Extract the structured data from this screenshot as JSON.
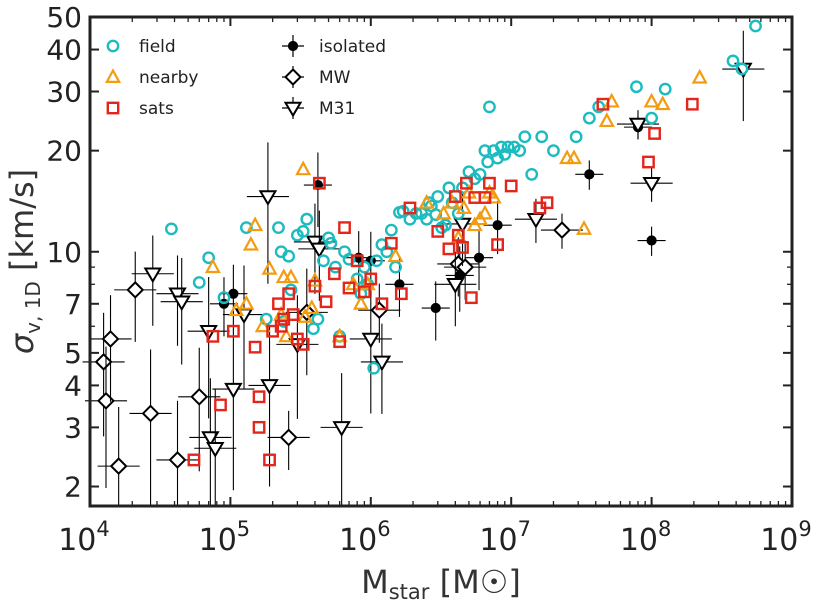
{
  "chart_data": {
    "type": "scatter",
    "x_scale": "log",
    "y_scale": "log",
    "xlim": [
      10000,
      1000000000
    ],
    "ylim": [
      1.75,
      50
    ],
    "xlabel": {
      "main": "M",
      "sub": "star",
      "unit_open": " [M",
      "unit_close": "]"
    },
    "ylabel": {
      "main": "σ",
      "sub": "v, 1D",
      "unit": " [km/s]"
    },
    "x_ticks": [
      {
        "value": 10000,
        "base": "10",
        "exp": "4"
      },
      {
        "value": 100000,
        "base": "10",
        "exp": "5"
      },
      {
        "value": 1000000,
        "base": "10",
        "exp": "6"
      },
      {
        "value": 10000000,
        "base": "10",
        "exp": "7"
      },
      {
        "value": 100000000,
        "base": "10",
        "exp": "8"
      },
      {
        "value": 1000000000,
        "base": "10",
        "exp": "9"
      }
    ],
    "y_ticks": [
      {
        "value": 2,
        "label": "2"
      },
      {
        "value": 3,
        "label": "3"
      },
      {
        "value": 4,
        "label": "4"
      },
      {
        "value": 5,
        "label": "5"
      },
      {
        "value": 7,
        "label": "7"
      },
      {
        "value": 10,
        "label": "10"
      },
      {
        "value": 20,
        "label": "20"
      },
      {
        "value": 30,
        "label": "30"
      },
      {
        "value": 40,
        "label": "40"
      },
      {
        "value": 50,
        "label": "50"
      }
    ],
    "legend": [
      {
        "label": "field",
        "series": "field"
      },
      {
        "label": "nearby",
        "series": "nearby"
      },
      {
        "label": "sats",
        "series": "sats"
      },
      {
        "label": "isolated",
        "series": "isolated"
      },
      {
        "label": "MW",
        "series": "MW"
      },
      {
        "label": "M31",
        "series": "M31"
      }
    ],
    "series": [
      {
        "name": "field",
        "marker": "circle",
        "color": "#1bbcbf",
        "points": [
          [
            38000,
            11.7
          ],
          [
            70000,
            9.6
          ],
          [
            60000,
            8.1
          ],
          [
            90000,
            7.3
          ],
          [
            130000,
            11.8
          ],
          [
            180000,
            6.3
          ],
          [
            220000,
            11.8
          ],
          [
            230000,
            10.0
          ],
          [
            240000,
            6.2
          ],
          [
            260000,
            9.7
          ],
          [
            270000,
            7.7
          ],
          [
            300000,
            11.2
          ],
          [
            330000,
            11.5
          ],
          [
            350000,
            12.5
          ],
          [
            390000,
            5.9
          ],
          [
            420000,
            6.3
          ],
          [
            460000,
            9.4
          ],
          [
            500000,
            11.0
          ],
          [
            520000,
            10.6
          ],
          [
            560000,
            9.0
          ],
          [
            600000,
            5.6
          ],
          [
            650000,
            10.0
          ],
          [
            700000,
            9.5
          ],
          [
            800000,
            8.3
          ],
          [
            850000,
            7.5
          ],
          [
            900000,
            9.0
          ],
          [
            950000,
            8.0
          ],
          [
            1050000,
            4.5
          ],
          [
            1100000,
            9.4
          ],
          [
            1200000,
            10.5
          ],
          [
            1300000,
            10.0
          ],
          [
            1400000,
            11.6
          ],
          [
            1500000,
            9.0
          ],
          [
            1600000,
            13.1
          ],
          [
            1700000,
            13.2
          ],
          [
            1900000,
            12.5
          ],
          [
            2100000,
            13.0
          ],
          [
            2300000,
            13.0
          ],
          [
            2500000,
            12.5
          ],
          [
            2600000,
            14.0
          ],
          [
            2700000,
            13.7
          ],
          [
            2900000,
            12.9
          ],
          [
            3000000,
            14.6
          ],
          [
            3200000,
            11.8
          ],
          [
            3400000,
            12.0
          ],
          [
            3600000,
            15.5
          ],
          [
            3800000,
            14.0
          ],
          [
            4200000,
            13.0
          ],
          [
            4500000,
            15.5
          ],
          [
            5000000,
            17.3
          ],
          [
            5500000,
            16.5
          ],
          [
            6000000,
            17.0
          ],
          [
            6500000,
            20.0
          ],
          [
            6800000,
            18.5
          ],
          [
            7000000,
            27.0
          ],
          [
            7500000,
            20.0
          ],
          [
            8000000,
            19.0
          ],
          [
            8500000,
            20.5
          ],
          [
            9000000,
            19.5
          ],
          [
            9500000,
            20.5
          ],
          [
            10500000,
            20.5
          ],
          [
            11500000,
            20.0
          ],
          [
            12500000,
            22.0
          ],
          [
            14000000,
            17.0
          ],
          [
            16500000,
            22.0
          ],
          [
            20000000,
            20.0
          ],
          [
            29000000,
            22.0
          ],
          [
            36000000,
            25.0
          ],
          [
            42000000,
            27.0
          ],
          [
            78000000,
            31.0
          ],
          [
            100000000,
            25.0
          ],
          [
            125000000,
            30.5
          ],
          [
            380000000,
            37.0
          ],
          [
            440000000,
            35.0
          ],
          [
            550000000,
            47.0
          ]
        ]
      },
      {
        "name": "nearby",
        "marker": "triangle-up",
        "color": "#f39c12",
        "points": [
          [
            75000,
            9.0
          ],
          [
            110000,
            6.7
          ],
          [
            130000,
            7.0
          ],
          [
            140000,
            10.5
          ],
          [
            150000,
            12.0
          ],
          [
            170000,
            6.0
          ],
          [
            190000,
            8.9
          ],
          [
            230000,
            6.5
          ],
          [
            240000,
            8.4
          ],
          [
            250000,
            5.6
          ],
          [
            270000,
            8.4
          ],
          [
            330000,
            17.6
          ],
          [
            340000,
            6.4
          ],
          [
            380000,
            6.8
          ],
          [
            400000,
            8.2
          ],
          [
            600000,
            5.6
          ],
          [
            750000,
            8.0
          ],
          [
            850000,
            7.0
          ],
          [
            950000,
            8.0
          ],
          [
            1500000,
            9.7
          ],
          [
            2500000,
            14.0
          ],
          [
            3300000,
            13.0
          ],
          [
            3800000,
            14.0
          ],
          [
            4200000,
            11.0
          ],
          [
            4600000,
            13.5
          ],
          [
            5000000,
            15.0
          ],
          [
            5500000,
            12.0
          ],
          [
            6000000,
            12.5
          ],
          [
            6500000,
            13.0
          ],
          [
            7000000,
            15.0
          ],
          [
            7500000,
            14.5
          ],
          [
            25000000,
            19.0
          ],
          [
            28000000,
            19.0
          ],
          [
            33000000,
            11.7
          ],
          [
            48000000,
            24.5
          ],
          [
            52000000,
            28.0
          ],
          [
            100000000,
            28.0
          ],
          [
            120000000,
            27.5
          ],
          [
            220000000,
            33.0
          ]
        ]
      },
      {
        "name": "sats",
        "marker": "square",
        "color": "#e3261c",
        "points": [
          [
            55000,
            2.4
          ],
          [
            75000,
            5.6
          ],
          [
            85000,
            3.5
          ],
          [
            105000,
            5.8
          ],
          [
            150000,
            5.2
          ],
          [
            160000,
            3.7
          ],
          [
            160000,
            3.0
          ],
          [
            190000,
            2.4
          ],
          [
            200000,
            5.8
          ],
          [
            220000,
            7.0
          ],
          [
            230000,
            6.0
          ],
          [
            240000,
            6.3
          ],
          [
            260000,
            7.5
          ],
          [
            280000,
            6.5
          ],
          [
            300000,
            5.5
          ],
          [
            330000,
            5.3
          ],
          [
            400000,
            7.9
          ],
          [
            430000,
            16.0
          ],
          [
            480000,
            7.1
          ],
          [
            550000,
            8.6
          ],
          [
            600000,
            5.4
          ],
          [
            650000,
            11.8
          ],
          [
            700000,
            7.8
          ],
          [
            800000,
            9.4
          ],
          [
            900000,
            7.6
          ],
          [
            1000000,
            8.3
          ],
          [
            1200000,
            7.0
          ],
          [
            1400000,
            10.6
          ],
          [
            1650000,
            7.5
          ],
          [
            1900000,
            13.5
          ],
          [
            3000000,
            11.5
          ],
          [
            3600000,
            10.2
          ],
          [
            4000000,
            14.6
          ],
          [
            4200000,
            11.2
          ],
          [
            4500000,
            10.3
          ],
          [
            4800000,
            16.0
          ],
          [
            5200000,
            7.3
          ],
          [
            5500000,
            14.5
          ],
          [
            6500000,
            14.5
          ],
          [
            7000000,
            16.0
          ],
          [
            8000000,
            10.5
          ],
          [
            10000000,
            15.7
          ],
          [
            16000000,
            13.5
          ],
          [
            18000000,
            14.0
          ],
          [
            45000000,
            27.5
          ],
          [
            95000000,
            18.5
          ],
          [
            105000000,
            22.5
          ],
          [
            195000000,
            27.5
          ]
        ]
      },
      {
        "name": "isolated",
        "marker": "filled-circle",
        "color": "#000000",
        "points": [
          [
            90000,
            7.0
          ],
          [
            105000,
            7.5
          ],
          [
            420000,
            15.8
          ],
          [
            820000,
            9.6
          ],
          [
            1000000,
            9.4
          ],
          [
            1600000,
            8.0
          ],
          [
            2900000,
            6.8
          ],
          [
            4300000,
            8.5
          ],
          [
            5900000,
            9.6
          ],
          [
            8000000,
            12.0
          ],
          [
            36000000,
            17.0
          ],
          [
            80000000,
            23.5
          ],
          [
            100000000,
            10.8
          ]
        ],
        "xerr_dex": 0.1,
        "yerr_frac": [
          0.2,
          0.22,
          0.25,
          0.2,
          0.22,
          0.2,
          0.2,
          0.22,
          0.2,
          0.18,
          0.1,
          0.08,
          0.1
        ]
      },
      {
        "name": "MW",
        "marker": "diamond",
        "color": "#000000",
        "points": [
          [
            12500,
            4.7
          ],
          [
            13000,
            3.6
          ],
          [
            14000,
            5.5
          ],
          [
            16000,
            2.3
          ],
          [
            21000,
            7.7
          ],
          [
            27000,
            3.3
          ],
          [
            42000,
            2.4
          ],
          [
            60000,
            3.7
          ],
          [
            260000,
            2.8
          ],
          [
            350000,
            6.6
          ],
          [
            1150000,
            6.7
          ],
          [
            4200000,
            9.2
          ],
          [
            4700000,
            9.0
          ],
          [
            23000000,
            11.6
          ]
        ],
        "xerr_dex": 0.15,
        "yerr_frac": [
          0.4,
          0.45,
          0.35,
          0.5,
          0.3,
          0.55,
          0.5,
          0.4,
          0.2,
          0.35,
          0.2,
          0.2,
          0.2,
          0.12
        ]
      },
      {
        "name": "M31",
        "marker": "triangle-down",
        "color": "#000000",
        "points": [
          [
            28000,
            8.6
          ],
          [
            42000,
            7.5
          ],
          [
            45000,
            7.1
          ],
          [
            70000,
            5.8
          ],
          [
            72000,
            2.8
          ],
          [
            78000,
            2.6
          ],
          [
            105000,
            3.9
          ],
          [
            125000,
            6.5
          ],
          [
            185000,
            14.6
          ],
          [
            190000,
            4.0
          ],
          [
            300000,
            5.3
          ],
          [
            400000,
            10.7
          ],
          [
            430000,
            10.2
          ],
          [
            620000,
            3.0
          ],
          [
            1000000,
            5.5
          ],
          [
            1200000,
            4.7
          ],
          [
            4000000,
            8.0
          ],
          [
            4500000,
            12.1
          ],
          [
            15000000,
            12.5
          ],
          [
            80000000,
            24.0
          ],
          [
            100000000,
            16.0
          ],
          [
            450000000,
            35.0
          ]
        ],
        "xerr_dex": 0.15,
        "yerr_frac": [
          0.3,
          0.3,
          0.35,
          0.45,
          0.5,
          0.5,
          0.5,
          0.4,
          0.45,
          0.5,
          0.4,
          0.3,
          0.3,
          0.45,
          0.4,
          0.3,
          0.25,
          0.25,
          0.15,
          0.1,
          0.12,
          0.3
        ]
      }
    ]
  }
}
